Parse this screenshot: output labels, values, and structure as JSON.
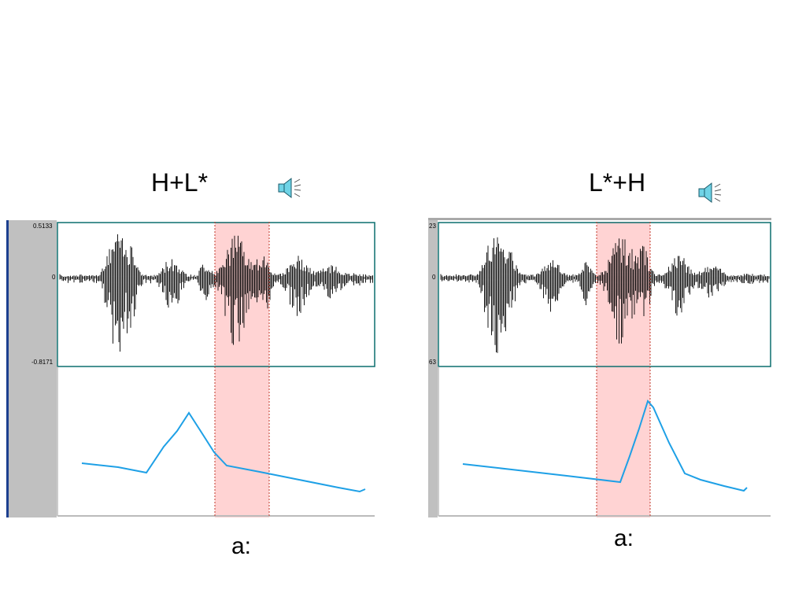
{
  "panels": [
    {
      "title": "H+L*",
      "vowel_label": "a:",
      "axis_labels": {
        "max": "0.5133",
        "zero": "0",
        "min": "-0.8171"
      },
      "speaker_icon": "speaker-icon",
      "colors": {
        "pitch": "#1ea0e6",
        "highlight": "#ffd3d3",
        "frame": "#0b6e6e",
        "waveform": "#000000"
      }
    },
    {
      "title": "L*+H",
      "vowel_label": "a:",
      "axis_labels": {
        "max": "23",
        "zero": "0",
        "min": "63"
      },
      "speaker_icon": "speaker-icon",
      "colors": {
        "pitch": "#1ea0e6",
        "highlight": "#ffd3d3",
        "frame": "#0b6e6e",
        "waveform": "#000000"
      }
    }
  ]
}
